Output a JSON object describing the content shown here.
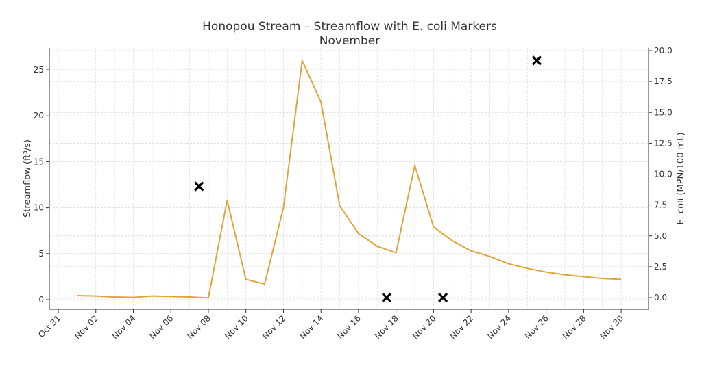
{
  "chart_data": {
    "type": "line",
    "title": "Honopou Stream – Streamflow with E. coli Markers",
    "subtitle": "November",
    "xlabel": "",
    "ylabel": "Streamflow (ft³/s)",
    "y2label": "E. coli (MPN/100 mL)",
    "xlim_day": [
      -0.5,
      30
    ],
    "ylim": [
      -1,
      27
    ],
    "y2lim": [
      -0.8,
      20.8
    ],
    "x_ticks": [
      "Oct 31",
      "Nov 02",
      "Nov 04",
      "Nov 06",
      "Nov 08",
      "Nov 10",
      "Nov 12",
      "Nov 14",
      "Nov 16",
      "Nov 18",
      "Nov 20",
      "Nov 22",
      "Nov 24",
      "Nov 26",
      "Nov 28",
      "Nov 30"
    ],
    "y_ticks": [
      "0",
      "5",
      "10",
      "15",
      "20",
      "25"
    ],
    "y2_ticks": [
      "0.0",
      "2.5",
      "5.0",
      "7.5",
      "10.0",
      "12.5",
      "15.0",
      "17.5",
      "20.0"
    ],
    "grid": true,
    "series": [
      {
        "name": "Streamflow",
        "axis": "left",
        "color": "#E0A43A",
        "day": [
          1,
          2,
          3,
          4,
          5,
          6,
          7,
          8,
          9,
          10,
          11,
          12,
          13,
          14,
          15,
          16,
          17,
          18,
          19,
          20,
          21,
          22,
          23,
          24,
          25,
          26,
          27,
          28,
          29,
          30
        ],
        "values": [
          0.45,
          0.4,
          0.3,
          0.25,
          0.4,
          0.35,
          0.3,
          0.2,
          10.8,
          2.2,
          1.7,
          10.0,
          26.0,
          21.5,
          10.2,
          7.2,
          5.8,
          5.1,
          14.6,
          7.9,
          6.4,
          5.3,
          4.7,
          3.9,
          3.4,
          3.0,
          2.7,
          2.5,
          2.3,
          2.2
        ]
      },
      {
        "name": "E. coli",
        "axis": "right",
        "color": "#000000",
        "marker": "x",
        "day": [
          7.5,
          17.5,
          20.5,
          25.5
        ],
        "values": [
          9.0,
          0.0,
          0.0,
          19.2
        ]
      }
    ]
  }
}
